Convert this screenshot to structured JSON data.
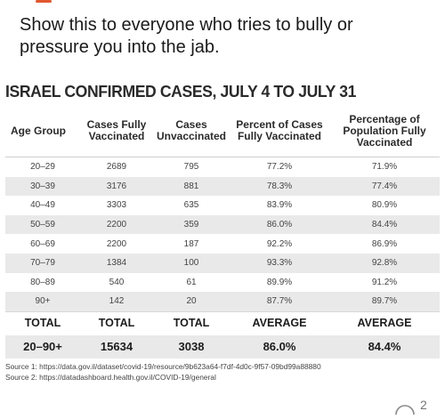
{
  "post": {
    "text_line1": "Show this to everyone who tries to bully or",
    "text_line2": "pressure you into the jab."
  },
  "infographic": {
    "title": "ISRAEL CONFIRMED CASES, JULY 4 TO JULY 31",
    "headers": [
      "Age Group",
      "Cases Fully Vaccinated",
      "Cases Unvaccinated",
      "Percent of Cases Fully Vaccinated",
      "Percentage of Population Fully Vaccinated"
    ],
    "rows": [
      [
        "20–29",
        "2689",
        "795",
        "77.2%",
        "71.9%"
      ],
      [
        "30–39",
        "3176",
        "881",
        "78.3%",
        "77.4%"
      ],
      [
        "40–49",
        "3303",
        "635",
        "83.9%",
        "80.9%"
      ],
      [
        "50–59",
        "2200",
        "359",
        "86.0%",
        "84.4%"
      ],
      [
        "60–69",
        "2200",
        "187",
        "92.2%",
        "86.9%"
      ],
      [
        "70–79",
        "1384",
        "100",
        "93.3%",
        "92.8%"
      ],
      [
        "80–89",
        "540",
        "61",
        "89.9%",
        "91.2%"
      ],
      [
        "90+",
        "142",
        "20",
        "87.7%",
        "89.7%"
      ]
    ],
    "total_labels": [
      "TOTAL",
      "TOTAL",
      "TOTAL",
      "AVERAGE",
      "AVERAGE"
    ],
    "summary": [
      "20–90+",
      "15634",
      "3038",
      "86.0%",
      "84.4%"
    ],
    "sources": [
      "Source 1: https://data.gov.il/dataset/covid-19/resource/9b623a64-f7df-4d0c-9f57-09bd99a88880",
      "Source 2: https://datadashboard.health.gov.il/COVID-19/general"
    ]
  },
  "footer": {
    "comment_count": "2",
    "comment_icon": "comment-icon"
  },
  "colors": {
    "accent": "#e0562e",
    "row_shade": "#e9e9e9"
  }
}
